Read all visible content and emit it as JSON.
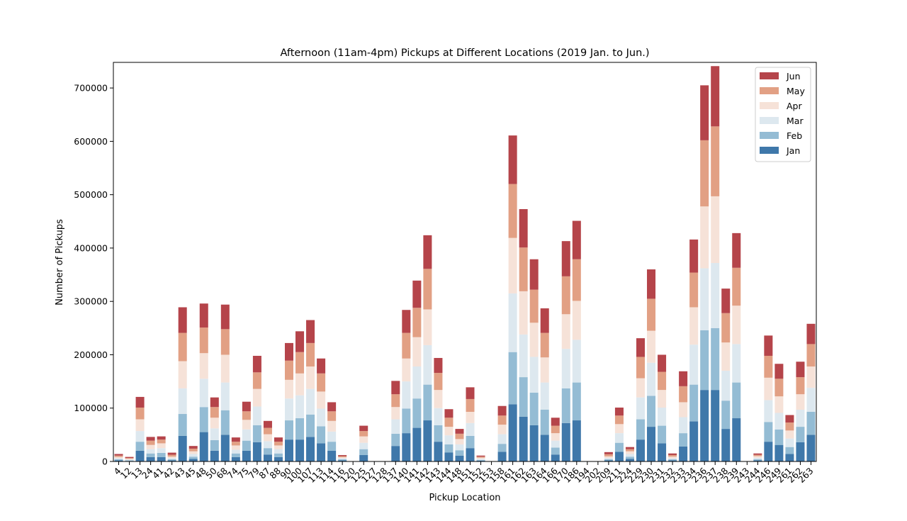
{
  "chart_data": {
    "type": "bar",
    "stacked": true,
    "title": "Afternoon (11am-4pm) Pickups at Different Locations (2019 Jan. to Jun.)",
    "xlabel": "Pickup Location",
    "ylabel": "Number of Pickups",
    "ylim": [
      0,
      748000
    ],
    "yticks": [
      0,
      100000,
      200000,
      300000,
      400000,
      500000,
      600000,
      700000
    ],
    "grid": false,
    "legend_position": "top-right",
    "legend_order": [
      "Jun",
      "May",
      "Apr",
      "Mar",
      "Feb",
      "Jan"
    ],
    "categories": [
      "4",
      "12",
      "13",
      "24",
      "41",
      "42",
      "43",
      "45",
      "48",
      "50",
      "68",
      "74",
      "75",
      "79",
      "87",
      "88",
      "90",
      "100",
      "107",
      "113",
      "114",
      "116",
      "120",
      "125",
      "127",
      "128",
      "137",
      "140",
      "141",
      "142",
      "143",
      "144",
      "148",
      "151",
      "152",
      "153",
      "158",
      "161",
      "162",
      "163",
      "164",
      "166",
      "170",
      "186",
      "194",
      "202",
      "209",
      "211",
      "224",
      "229",
      "230",
      "231",
      "232",
      "233",
      "234",
      "236",
      "237",
      "238",
      "239",
      "243",
      "244",
      "246",
      "249",
      "261",
      "262",
      "263"
    ],
    "series": [
      {
        "name": "Jan",
        "color": "#3f78aa",
        "values": [
          2000,
          1000,
          20000,
          8000,
          8000,
          2000,
          48000,
          5000,
          55000,
          20000,
          50000,
          8000,
          20000,
          36000,
          13000,
          8000,
          41000,
          41000,
          46000,
          34000,
          20000,
          2000,
          0,
          12000,
          0,
          0,
          29000,
          53000,
          63000,
          77000,
          37000,
          17000,
          11000,
          25000,
          1500,
          0,
          18000,
          107000,
          84000,
          68000,
          50000,
          13000,
          72000,
          77000,
          0,
          0,
          2000,
          18000,
          5000,
          41000,
          65000,
          34000,
          2000,
          28000,
          75000,
          134000,
          134000,
          61000,
          81000,
          0,
          2000,
          37000,
          31000,
          14000,
          36000,
          50000
        ]
      },
      {
        "name": "Feb",
        "color": "#94bcd4",
        "values": [
          2000,
          1000,
          17000,
          7000,
          8000,
          2000,
          41000,
          4000,
          47000,
          20000,
          46000,
          7000,
          19000,
          32000,
          12000,
          7000,
          36000,
          40000,
          42000,
          32000,
          17000,
          2000,
          0,
          11000,
          0,
          0,
          23000,
          46000,
          55000,
          67000,
          31000,
          15000,
          10000,
          23000,
          1500,
          0,
          15000,
          98000,
          74000,
          61000,
          47000,
          13000,
          65000,
          71000,
          0,
          0,
          2000,
          17000,
          4000,
          38000,
          58000,
          33000,
          2000,
          25000,
          69000,
          112000,
          116000,
          53000,
          67000,
          0,
          2000,
          37000,
          29000,
          13000,
          29000,
          43000
        ]
      },
      {
        "name": "Mar",
        "color": "#dde8ef",
        "values": [
          2000,
          1500,
          20000,
          8000,
          9000,
          2500,
          48000,
          5000,
          53000,
          22000,
          52000,
          7000,
          21000,
          35000,
          13000,
          8000,
          41000,
          43000,
          48000,
          33000,
          19000,
          2000,
          0,
          12000,
          0,
          0,
          27000,
          51000,
          60000,
          74000,
          32000,
          17000,
          11000,
          24000,
          2000,
          0,
          18000,
          110000,
          80000,
          67000,
          51000,
          13000,
          74000,
          80000,
          0,
          0,
          2500,
          18000,
          5000,
          41000,
          62000,
          34000,
          2000,
          30000,
          75000,
          116000,
          122000,
          56000,
          72000,
          0,
          3000,
          41000,
          31000,
          16000,
          32000,
          45000
        ]
      },
      {
        "name": "Apr",
        "color": "#f6e2d8",
        "values": [
          2500,
          1500,
          22000,
          8000,
          9000,
          2500,
          51000,
          5000,
          48000,
          20000,
          52000,
          8000,
          18000,
          33000,
          13000,
          7000,
          35000,
          41000,
          42000,
          32000,
          20000,
          2000,
          0,
          12000,
          0,
          0,
          23000,
          43000,
          55000,
          67000,
          34000,
          16000,
          10000,
          21000,
          2000,
          0,
          18000,
          104000,
          81000,
          64000,
          47000,
          14000,
          65000,
          73000,
          0,
          0,
          3000,
          17000,
          5000,
          36000,
          60000,
          33000,
          3000,
          28000,
          70000,
          116000,
          125000,
          53000,
          72000,
          0,
          3000,
          42000,
          31000,
          15000,
          29000,
          40000
        ]
      },
      {
        "name": "May",
        "color": "#e2a084",
        "values": [
          2500,
          1500,
          22000,
          8000,
          7000,
          3500,
          53000,
          5000,
          48000,
          20000,
          48000,
          7000,
          16000,
          31000,
          12000,
          7000,
          36000,
          40000,
          44000,
          34000,
          18000,
          2000,
          0,
          10000,
          0,
          0,
          24000,
          48000,
          55000,
          76000,
          32000,
          17000,
          10000,
          24000,
          2000,
          0,
          17000,
          101000,
          82000,
          62000,
          46000,
          14000,
          71000,
          78000,
          0,
          0,
          4000,
          16000,
          4000,
          40000,
          60000,
          34000,
          3000,
          30000,
          65000,
          124000,
          131000,
          55000,
          71000,
          0,
          2500,
          41000,
          33000,
          15000,
          32000,
          42000
        ]
      },
      {
        "name": "Jun",
        "color": "#b5444a",
        "values": [
          3000,
          2000,
          20000,
          7000,
          6000,
          4000,
          48000,
          5000,
          45000,
          18000,
          46000,
          8000,
          18000,
          31000,
          13000,
          8000,
          33000,
          39000,
          43000,
          28000,
          17000,
          2000,
          0,
          10000,
          0,
          0,
          25000,
          43000,
          51000,
          63000,
          28000,
          16000,
          9000,
          22000,
          2000,
          0,
          18000,
          91000,
          72000,
          57000,
          46000,
          15000,
          66000,
          72000,
          0,
          0,
          4000,
          15000,
          4000,
          35000,
          55000,
          32000,
          3000,
          28000,
          62000,
          103000,
          113000,
          46000,
          65000,
          0,
          2500,
          38000,
          28000,
          14000,
          29000,
          38000
        ]
      }
    ]
  }
}
